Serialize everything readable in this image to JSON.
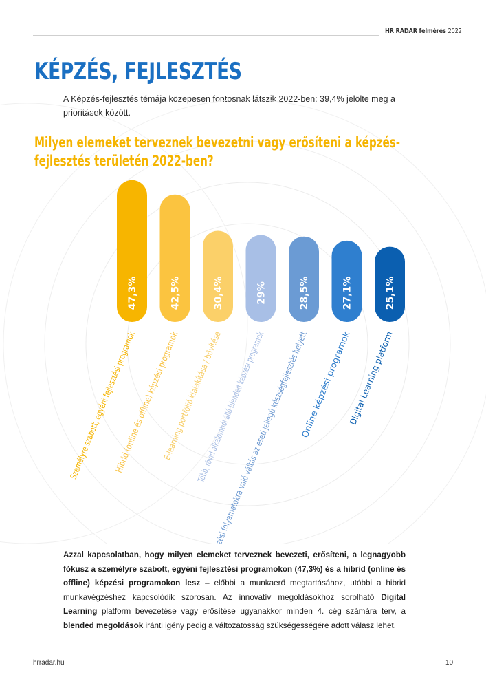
{
  "header": {
    "brand": "HR RADAR felmérés",
    "year": "2022"
  },
  "page_title": "KÉPZÉS, FEJLESZTÉS",
  "intro": "A Képzés-fejlesztés témája közepesen fontosnak látszik 2022-ben: 39,4% jelölte meg a prioritások között.",
  "chart_data": {
    "type": "bar",
    "title": "Milyen elemeket terveznek bevezetni vagy erősíteni a képzés-fejlesztés területén 2022-ben?",
    "categories": [
      "Személyre szabott, egyéni fejlesztési programok",
      "Hibrid (online és offline) képzési programok",
      "E-learning portfólió kialakítása / bővítése",
      "Több, rövid alkalomból álló blended képzési programok",
      "Átfogóbb képzési folyamatokra való váltás az eseti jellegű készségfejlesztés helyett",
      "Online képzési programok",
      "Digital Learning platform"
    ],
    "values": [
      47.3,
      42.5,
      30.4,
      29,
      28.5,
      27.1,
      25.1
    ],
    "value_labels": [
      "47,3%",
      "42,5%",
      "30,4%",
      "29%",
      "28,5%",
      "27,1%",
      "25,1%"
    ],
    "unit": "%",
    "xlabel": "",
    "ylabel": "",
    "ylim": [
      0,
      50
    ],
    "colors": [
      "#f7b500",
      "#fbc440",
      "#fbd069",
      "#a8bfe6",
      "#6b9bd4",
      "#2f7fcf",
      "#0b5fb0"
    ],
    "label_colors": [
      "#f5b400",
      "#f8c243",
      "#f7cd66",
      "#a6bce3",
      "#6a97d0",
      "#2b7bcb",
      "#0b5fb0"
    ]
  },
  "body_text": {
    "p1": "Azzal kapcsolatban, hogy milyen elemeket terveznek bevezeti, erősíteni, a legnagyobb fókusz a személyre szabott, egyéni fejlesztési programokon (47,3%) és a hibrid (online és offline) képzési programokon lesz",
    "p2": " – előbbi a munkaerő megtartásához, utóbbi a hibrid munkavégzéshez kapcsolódik szorosan. Az innovatív megoldásokhoz sorolható ",
    "p3": "Digital Learning",
    "p4": " platform bevezetése vagy erősítése ugyanakkor minden 4. cég számára terv, a ",
    "p5": "blended megoldások",
    "p6": " iránti igény pedig a változatosság szükségességére adott válasz lehet."
  },
  "footer": {
    "site": "hrradar.hu",
    "page_number": "10"
  }
}
